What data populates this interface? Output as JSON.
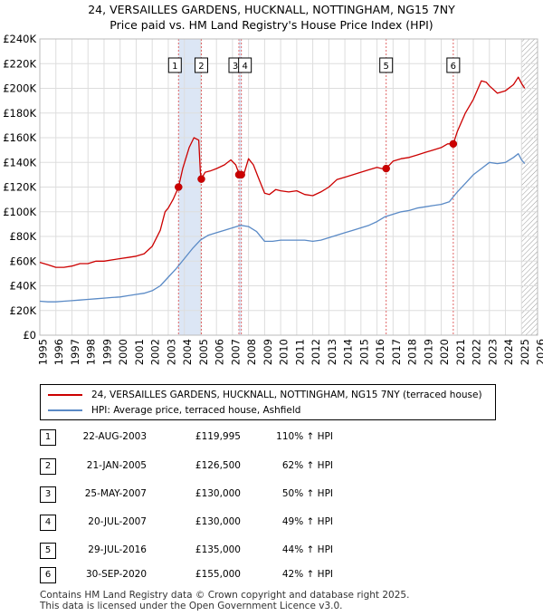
{
  "title_line1": "24, VERSAILLES GARDENS, HUCKNALL, NOTTINGHAM, NG15 7NY",
  "title_line2": "Price paid vs. HM Land Registry's House Price Index (HPI)",
  "legend": {
    "property_label": "24, VERSAILLES GARDENS, HUCKNALL, NOTTINGHAM, NG15 7NY (terraced house)",
    "hpi_label": "HPI: Average price, terraced house, Ashfield"
  },
  "colors": {
    "property": "#cc0000",
    "hpi": "#5a8ac6",
    "band": "#dce6f5"
  },
  "transactions": [
    {
      "num": "1",
      "date": "22-AUG-2003",
      "price": "£119,995",
      "hpi": "110% ↑ HPI"
    },
    {
      "num": "2",
      "date": "21-JAN-2005",
      "price": "£126,500",
      "hpi": "62% ↑ HPI"
    },
    {
      "num": "3",
      "date": "25-MAY-2007",
      "price": "£130,000",
      "hpi": "50% ↑ HPI"
    },
    {
      "num": "4",
      "date": "20-JUL-2007",
      "price": "£130,000",
      "hpi": "49% ↑ HPI"
    },
    {
      "num": "5",
      "date": "29-JUL-2016",
      "price": "£135,000",
      "hpi": "44% ↑ HPI"
    },
    {
      "num": "6",
      "date": "30-SEP-2020",
      "price": "£155,000",
      "hpi": "42% ↑ HPI"
    }
  ],
  "footer_line1": "Contains HM Land Registry data © Crown copyright and database right 2025.",
  "footer_line2": "This data is licensed under the Open Government Licence v3.0.",
  "chart_data": {
    "type": "line",
    "title": "24, VERSAILLES GARDENS, HUCKNALL, NOTTINGHAM, NG15 7NY — Price paid vs. HM Land Registry's House Price Index (HPI)",
    "xlabel": "",
    "ylabel": "",
    "xlim": [
      1995,
      2026
    ],
    "ylim": [
      0,
      240000
    ],
    "x_ticks": [
      1995,
      1996,
      1997,
      1998,
      1999,
      2000,
      2001,
      2002,
      2003,
      2004,
      2005,
      2006,
      2007,
      2008,
      2009,
      2010,
      2011,
      2012,
      2013,
      2014,
      2015,
      2016,
      2017,
      2018,
      2019,
      2020,
      2021,
      2022,
      2023,
      2024,
      2025,
      2026
    ],
    "y_ticks": [
      0,
      20000,
      40000,
      60000,
      80000,
      100000,
      120000,
      140000,
      160000,
      180000,
      200000,
      220000,
      240000
    ],
    "y_tick_labels": [
      "£0",
      "£20K",
      "£40K",
      "£60K",
      "£80K",
      "£100K",
      "£120K",
      "£140K",
      "£160K",
      "£180K",
      "£200K",
      "£220K",
      "£240K"
    ],
    "grid": true,
    "legend_position": "below",
    "series": [
      {
        "name": "24, VERSAILLES GARDENS, HUCKNALL, NOTTINGHAM, NG15 7NY (terraced house)",
        "x": [
          1995.0,
          1995.5,
          1996.0,
          1996.5,
          1997.0,
          1997.5,
          1998.0,
          1998.5,
          1999.0,
          1999.5,
          2000.0,
          2000.5,
          2001.0,
          2001.5,
          2002.0,
          2002.5,
          2002.8,
          2003.0,
          2003.3,
          2003.64,
          2003.9,
          2004.3,
          2004.6,
          2004.9,
          2005.0,
          2005.06,
          2005.3,
          2005.6,
          2006.0,
          2006.5,
          2006.9,
          2007.2,
          2007.4,
          2007.55,
          2007.7,
          2008.0,
          2008.3,
          2008.6,
          2009.0,
          2009.3,
          2009.7,
          2010.0,
          2010.5,
          2011.0,
          2011.5,
          2012.0,
          2012.5,
          2013.0,
          2013.5,
          2014.0,
          2014.5,
          2015.0,
          2015.5,
          2016.0,
          2016.3,
          2016.57,
          2017.0,
          2017.5,
          2018.0,
          2018.5,
          2019.0,
          2019.5,
          2020.0,
          2020.4,
          2020.75,
          2021.0,
          2021.5,
          2022.0,
          2022.5,
          2022.8,
          2023.0,
          2023.5,
          2024.0,
          2024.5,
          2024.8,
          2025.0,
          2025.2
        ],
        "y": [
          59000,
          57000,
          55000,
          55000,
          56000,
          58000,
          58000,
          60000,
          60000,
          61000,
          62000,
          63000,
          64000,
          66000,
          72000,
          85000,
          100000,
          103000,
          110000,
          119995,
          135000,
          152000,
          160000,
          158000,
          132000,
          126500,
          132000,
          133000,
          135000,
          138000,
          142000,
          138000,
          131000,
          130000,
          130000,
          143000,
          138000,
          128000,
          115000,
          114000,
          118000,
          117000,
          116000,
          117000,
          114000,
          113000,
          116000,
          120000,
          126000,
          128000,
          130000,
          132000,
          134000,
          136000,
          135000,
          135000,
          141000,
          143000,
          144000,
          146000,
          148000,
          150000,
          152000,
          155000,
          155000,
          165000,
          180000,
          191000,
          206000,
          205000,
          202000,
          196000,
          198000,
          203000,
          209000,
          204000,
          200000
        ]
      },
      {
        "name": "HPI: Average price, terraced house, Ashfield",
        "x": [
          1995.0,
          1995.5,
          1996.0,
          1996.5,
          1997.0,
          1997.5,
          1998.0,
          1998.5,
          1999.0,
          1999.5,
          2000.0,
          2000.5,
          2001.0,
          2001.5,
          2002.0,
          2002.5,
          2003.0,
          2003.5,
          2004.0,
          2004.5,
          2005.0,
          2005.5,
          2006.0,
          2006.5,
          2007.0,
          2007.5,
          2008.0,
          2008.5,
          2009.0,
          2009.5,
          2010.0,
          2010.5,
          2011.0,
          2011.5,
          2012.0,
          2012.5,
          2013.0,
          2013.5,
          2014.0,
          2014.5,
          2015.0,
          2015.5,
          2016.0,
          2016.5,
          2017.0,
          2017.5,
          2018.0,
          2018.5,
          2019.0,
          2019.5,
          2020.0,
          2020.5,
          2021.0,
          2021.5,
          2022.0,
          2022.5,
          2023.0,
          2023.5,
          2024.0,
          2024.5,
          2024.8,
          2025.0,
          2025.2
        ],
        "y": [
          27500,
          27000,
          27000,
          27500,
          28000,
          28500,
          29000,
          29500,
          30000,
          30500,
          31000,
          32000,
          33000,
          34000,
          36000,
          40000,
          47000,
          54000,
          62000,
          70000,
          77000,
          81000,
          83000,
          85000,
          87000,
          89000,
          88000,
          84000,
          76000,
          76000,
          77000,
          77000,
          77000,
          77000,
          76000,
          77000,
          79000,
          81000,
          83000,
          85000,
          87000,
          89000,
          92000,
          96000,
          98000,
          100000,
          101000,
          103000,
          104000,
          105000,
          106000,
          108000,
          116000,
          123000,
          130000,
          135000,
          140000,
          139000,
          140000,
          144000,
          147000,
          142000,
          139000
        ]
      }
    ],
    "sales": [
      {
        "label": "1",
        "x": 2003.64,
        "y": 119995
      },
      {
        "label": "2",
        "x": 2005.06,
        "y": 126500
      },
      {
        "label": "3",
        "x": 2007.4,
        "y": 130000
      },
      {
        "label": "4",
        "x": 2007.55,
        "y": 130000
      },
      {
        "label": "5",
        "x": 2016.57,
        "y": 135000
      },
      {
        "label": "6",
        "x": 2020.75,
        "y": 155000
      }
    ],
    "shaded_regions": [
      [
        2003.64,
        2005.06
      ],
      [
        2007.4,
        2007.55
      ]
    ],
    "hatched_region": [
      2025.0,
      2026.0
    ]
  }
}
